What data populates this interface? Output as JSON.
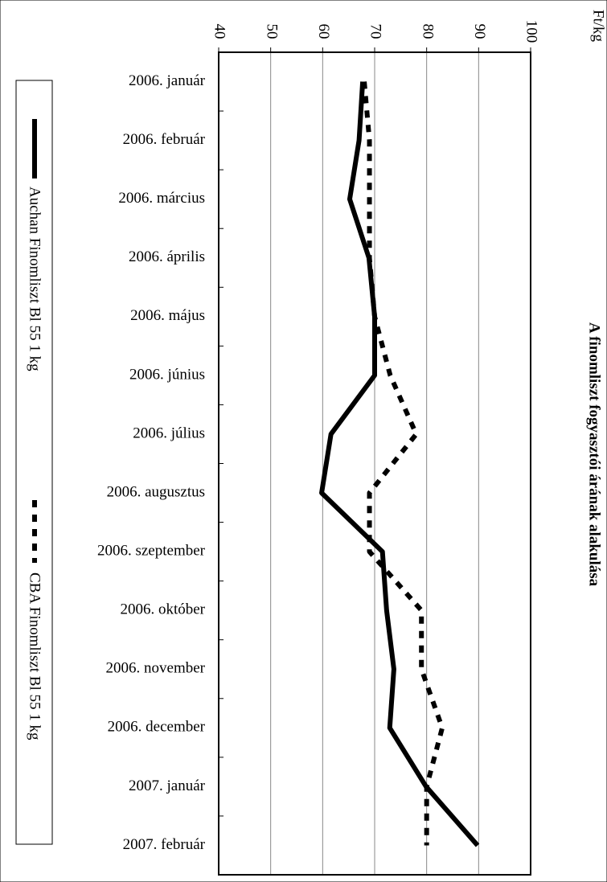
{
  "chart_data": {
    "type": "line",
    "title": "A finomliszt fogyasztói árának alakulása",
    "y_label": "Ft/kg",
    "categories": [
      "2006. január",
      "2006. február",
      "2006. március",
      "2006. április",
      "2006. május",
      "2006. június",
      "2006. július",
      "2006. augusztus",
      "2006. szeptember",
      "2006. október",
      "2006. november",
      "2006. december",
      "2007. január",
      "2007. február"
    ],
    "series": [
      {
        "name": "Auchan Finomliszt Bl 55 1 kg",
        "color": "#000000",
        "line_style": "solid",
        "values": [
          67.7,
          67,
          65.2,
          68.9,
          70,
          70,
          61.6,
          59.8,
          71.5,
          72.3,
          73.7,
          72.9,
          79.9,
          89.8
        ]
      },
      {
        "name": "CBA Finomliszt Bl 55 1 kg",
        "color": "#000000",
        "line_style": "dotted",
        "values": [
          68,
          69,
          69,
          69,
          70,
          73,
          78,
          69,
          69,
          79,
          79,
          83,
          80,
          80
        ]
      }
    ],
    "ylim": [
      40,
      100
    ],
    "yticks": [
      40,
      50,
      60,
      70,
      80,
      90,
      100
    ],
    "grid": true
  }
}
